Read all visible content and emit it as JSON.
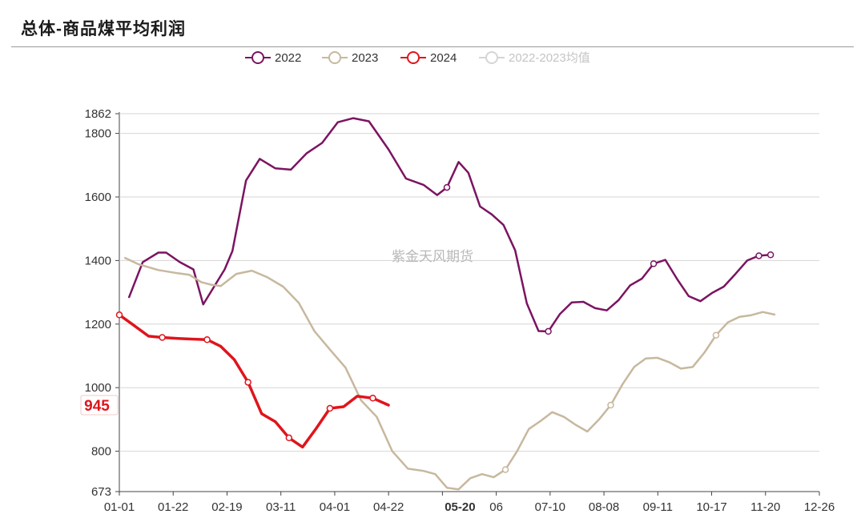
{
  "header": {
    "title": "总体-商品煤平均利润"
  },
  "watermark": "紫金天风期货",
  "chart_data": {
    "type": "line",
    "title": "总体-商品煤平均利润",
    "xlabel": "",
    "ylabel": "",
    "ylim": [
      673,
      1862
    ],
    "y_ticks": [
      673,
      800,
      1000,
      1200,
      1400,
      1600,
      1800,
      1862
    ],
    "x_ticks": [
      "01-01",
      "01-22",
      "02-19",
      "03-11",
      "04-01",
      "04-22",
      "05-20",
      "06",
      "07-10",
      "08-08",
      "09-11",
      "10-17",
      "11-20",
      "12-26"
    ],
    "x_range_days": [
      0,
      359
    ],
    "grid": true,
    "legend_position": "top",
    "series": [
      {
        "name": "2022",
        "color": "#7b1461",
        "points": [
          [
            5,
            1285
          ],
          [
            12,
            1395
          ],
          [
            20,
            1425
          ],
          [
            24,
            1425
          ],
          [
            31,
            1395
          ],
          [
            38,
            1372
          ],
          [
            43,
            1262
          ],
          [
            54,
            1372
          ],
          [
            58,
            1430
          ],
          [
            65,
            1652
          ],
          [
            72,
            1720
          ],
          [
            80,
            1690
          ],
          [
            88,
            1686
          ],
          [
            96,
            1737
          ],
          [
            104,
            1770
          ],
          [
            112,
            1835
          ],
          [
            120,
            1848
          ],
          [
            128,
            1838
          ],
          [
            138,
            1750
          ],
          [
            147,
            1658
          ],
          [
            156,
            1638
          ],
          [
            163,
            1606
          ],
          [
            168,
            1630
          ],
          [
            174,
            1710
          ],
          [
            179,
            1676
          ],
          [
            185,
            1570
          ],
          [
            191,
            1545
          ],
          [
            197,
            1512
          ],
          [
            203,
            1432
          ],
          [
            209,
            1265
          ],
          [
            215,
            1178
          ],
          [
            220,
            1177
          ],
          [
            226,
            1232
          ],
          [
            232,
            1268
          ],
          [
            238,
            1270
          ],
          [
            244,
            1250
          ],
          [
            250,
            1243
          ],
          [
            256,
            1275
          ],
          [
            262,
            1322
          ],
          [
            268,
            1343
          ],
          [
            274,
            1390
          ],
          [
            280,
            1402
          ],
          [
            286,
            1342
          ],
          [
            292,
            1288
          ],
          [
            298,
            1272
          ],
          [
            304,
            1298
          ],
          [
            310,
            1318
          ],
          [
            316,
            1358
          ],
          [
            322,
            1400
          ],
          [
            328,
            1415
          ],
          [
            334,
            1418
          ]
        ]
      },
      {
        "name": "2023",
        "color": "#c7b89e",
        "points": [
          [
            3,
            1408
          ],
          [
            10,
            1388
          ],
          [
            20,
            1370
          ],
          [
            30,
            1360
          ],
          [
            36,
            1355
          ],
          [
            42,
            1332
          ],
          [
            47,
            1324
          ],
          [
            52,
            1320
          ],
          [
            60,
            1358
          ],
          [
            68,
            1368
          ],
          [
            76,
            1347
          ],
          [
            84,
            1318
          ],
          [
            92,
            1267
          ],
          [
            100,
            1178
          ],
          [
            108,
            1120
          ],
          [
            116,
            1063
          ],
          [
            124,
            960
          ],
          [
            132,
            908
          ],
          [
            140,
            800
          ],
          [
            148,
            745
          ],
          [
            156,
            738
          ],
          [
            162,
            728
          ],
          [
            168,
            685
          ],
          [
            174,
            680
          ],
          [
            180,
            715
          ],
          [
            186,
            728
          ],
          [
            192,
            718
          ],
          [
            198,
            742
          ],
          [
            204,
            800
          ],
          [
            210,
            870
          ],
          [
            216,
            895
          ],
          [
            222,
            923
          ],
          [
            228,
            908
          ],
          [
            234,
            883
          ],
          [
            240,
            862
          ],
          [
            246,
            900
          ],
          [
            252,
            945
          ],
          [
            258,
            1010
          ],
          [
            264,
            1065
          ],
          [
            270,
            1092
          ],
          [
            276,
            1094
          ],
          [
            282,
            1080
          ],
          [
            288,
            1060
          ],
          [
            294,
            1065
          ],
          [
            300,
            1110
          ],
          [
            306,
            1165
          ],
          [
            312,
            1205
          ],
          [
            318,
            1223
          ],
          [
            324,
            1228
          ],
          [
            330,
            1238
          ],
          [
            336,
            1230
          ]
        ]
      },
      {
        "name": "2024",
        "color": "#e0141c",
        "points": [
          [
            0,
            1229
          ],
          [
            7,
            1198
          ],
          [
            15,
            1162
          ],
          [
            22,
            1158
          ],
          [
            30,
            1155
          ],
          [
            37,
            1153
          ],
          [
            45,
            1151
          ],
          [
            52,
            1130
          ],
          [
            59,
            1088
          ],
          [
            66,
            1017
          ],
          [
            73,
            918
          ],
          [
            80,
            893
          ],
          [
            87,
            842
          ],
          [
            94,
            813
          ],
          [
            101,
            872
          ],
          [
            108,
            935
          ],
          [
            115,
            940
          ],
          [
            122,
            973
          ],
          [
            130,
            967
          ],
          [
            138,
            945
          ]
        ]
      },
      {
        "name": "2022-2023均值",
        "color": "#d5d5d5",
        "points": []
      }
    ],
    "markers": {
      "2022": [
        168,
        220,
        274,
        328,
        334
      ],
      "2023": [
        198,
        252,
        306
      ],
      "2024": [
        0,
        22,
        45,
        66,
        87,
        108,
        130
      ]
    },
    "annotations": [
      {
        "label": "945",
        "series": "2024",
        "value": 945,
        "color": "#e0141c"
      },
      {
        "label": "05-20",
        "position": "x-axis",
        "color": "#e0141c"
      }
    ]
  }
}
